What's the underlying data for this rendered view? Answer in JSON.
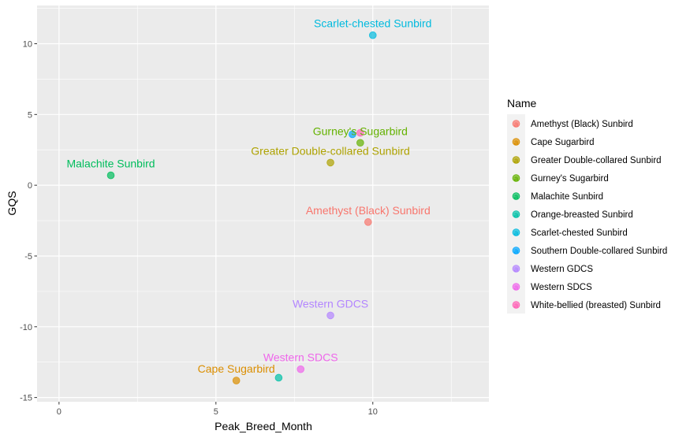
{
  "chart_data": {
    "type": "scatter",
    "xlabel": "Peak_Breed_Month",
    "ylabel": "GQS",
    "xlim": [
      -0.7,
      13.7
    ],
    "ylim": [
      -15.3,
      12.7
    ],
    "x_ticks": [
      0,
      5,
      10
    ],
    "x_tick_labels": [
      "0",
      "5",
      "10"
    ],
    "y_ticks": [
      -15,
      -10,
      -5,
      0,
      5,
      10
    ],
    "y_tick_labels": [
      "-15",
      "-10",
      "-5",
      "0",
      "5",
      "10"
    ],
    "grid": true,
    "legend": {
      "title": "Name",
      "placement": "right",
      "entries": [
        "Amethyst (Black) Sunbird",
        "Cape Sugarbird",
        "Greater Double-collared Sunbird",
        "Gurney's Sugarbird",
        "Malachite Sunbird",
        "Orange-breasted Sunbird",
        "Scarlet-chested Sunbird",
        "Southern Double-collared Sunbird",
        "Western GDCS",
        "Western SDCS",
        "White-bellied (breasted) Sunbird"
      ]
    },
    "series": [
      {
        "name": "Amethyst (Black) Sunbird",
        "x": 9.85,
        "y": -2.6,
        "color": "#F8766D",
        "label": "Amethyst (Black) Sunbird"
      },
      {
        "name": "Cape Sugarbird",
        "x": 5.65,
        "y": -13.8,
        "color": "#DB8E00",
        "label": "Cape Sugarbird"
      },
      {
        "name": "Greater Double-collared Sunbird",
        "x": 8.65,
        "y": 1.6,
        "color": "#AEA200",
        "label": "Greater Double-collared Sunbird"
      },
      {
        "name": "Gurney's Sugarbird",
        "x": 9.6,
        "y": 3.0,
        "color": "#64B200",
        "label": "Gurney's Sugarbird"
      },
      {
        "name": "Malachite Sunbird",
        "x": 1.65,
        "y": 0.7,
        "color": "#00BD5C",
        "label": "Malachite Sunbird"
      },
      {
        "name": "Orange-breasted Sunbird",
        "x": 7.0,
        "y": -13.6,
        "color": "#00C1A7",
        "label": ""
      },
      {
        "name": "Scarlet-chested Sunbird",
        "x": 10.0,
        "y": 10.6,
        "color": "#00BADE",
        "label": "Scarlet-chested Sunbird"
      },
      {
        "name": "Southern Double-collared Sunbird",
        "x": 9.35,
        "y": 3.6,
        "color": "#00A6FF",
        "label": ""
      },
      {
        "name": "Western GDCS",
        "x": 8.65,
        "y": -9.2,
        "color": "#B385FF",
        "label": "Western GDCS"
      },
      {
        "name": "Western SDCS",
        "x": 7.7,
        "y": -13.0,
        "color": "#EF67EB",
        "label": "Western SDCS"
      },
      {
        "name": "White-bellied (breasted) Sunbird",
        "x": 9.6,
        "y": 3.7,
        "color": "#FF63B6",
        "label": ""
      }
    ]
  }
}
